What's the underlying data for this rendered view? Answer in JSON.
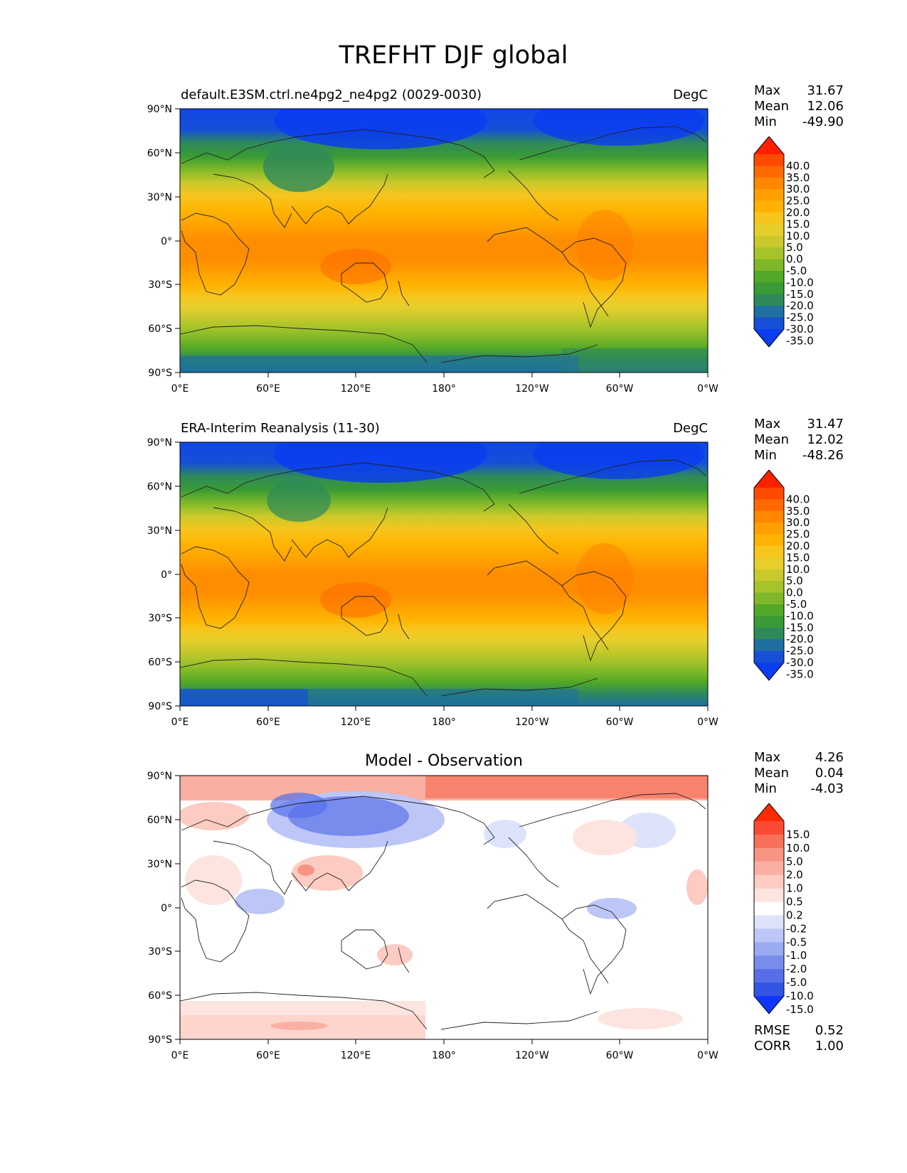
{
  "figure": {
    "title": "TREFHT DJF global"
  },
  "x_ticks": [
    "0°E",
    "60°E",
    "120°E",
    "180°",
    "120°W",
    "60°W",
    "0°W"
  ],
  "y_ticks": [
    "90°N",
    "60°N",
    "30°N",
    "0°",
    "30°S",
    "60°S",
    "90°S"
  ],
  "colorbar_main": {
    "labels": [
      "40.0",
      "35.0",
      "30.0",
      "25.0",
      "20.0",
      "15.0",
      "10.0",
      "5.0",
      "0.0",
      "-5.0",
      "-10.0",
      "-15.0",
      "-20.0",
      "-25.0",
      "-30.0",
      "-35.0"
    ],
    "colors": [
      "#ff2000",
      "#ff4a00",
      "#ff6a00",
      "#ff8800",
      "#ffa000",
      "#ffb300",
      "#f7c51d",
      "#e6cf2b",
      "#c9c92b",
      "#a6c32a",
      "#7eb829",
      "#52a827",
      "#3a9a35",
      "#2e8a5a",
      "#1f6fa0",
      "#1550d6",
      "#0a3cf0"
    ]
  },
  "colorbar_diff": {
    "labels": [
      "15.0",
      "10.0",
      "5.0",
      "2.0",
      "1.0",
      "0.5",
      "0.2",
      "-0.2",
      "-0.5",
      "-1.0",
      "-2.0",
      "-5.0",
      "-10.0",
      "-15.0"
    ],
    "colors": [
      "#ff2a00",
      "#fb4a34",
      "#f8705a",
      "#f79482",
      "#f9b0a2",
      "#fccbc1",
      "#fde4de",
      "#ffffff",
      "#dde3fb",
      "#bcc7f7",
      "#9aaaf3",
      "#778ced",
      "#566fe9",
      "#3455e4",
      "#1037ff"
    ]
  },
  "panels": [
    {
      "title": "default.E3SM.ctrl.ne4pg2_ne4pg2 (0029-0030)",
      "units": "DegC",
      "stats": [
        {
          "k": "Max",
          "v": "31.67"
        },
        {
          "k": "Mean",
          "v": "12.06"
        },
        {
          "k": "Min",
          "v": "-49.90"
        }
      ]
    },
    {
      "title": "ERA-Interim Reanalysis (11-30)",
      "units": "DegC",
      "stats": [
        {
          "k": "Max",
          "v": "31.47"
        },
        {
          "k": "Mean",
          "v": "12.02"
        },
        {
          "k": "Min",
          "v": "-48.26"
        }
      ]
    },
    {
      "title": "Model - Observation",
      "units": "",
      "stats": [
        {
          "k": "Max",
          "v": "4.26"
        },
        {
          "k": "Mean",
          "v": "0.04"
        },
        {
          "k": "Min",
          "v": "-4.03"
        }
      ],
      "metrics": [
        {
          "k": "RMSE",
          "v": "0.52"
        },
        {
          "k": "CORR",
          "v": "1.00"
        }
      ]
    }
  ]
}
